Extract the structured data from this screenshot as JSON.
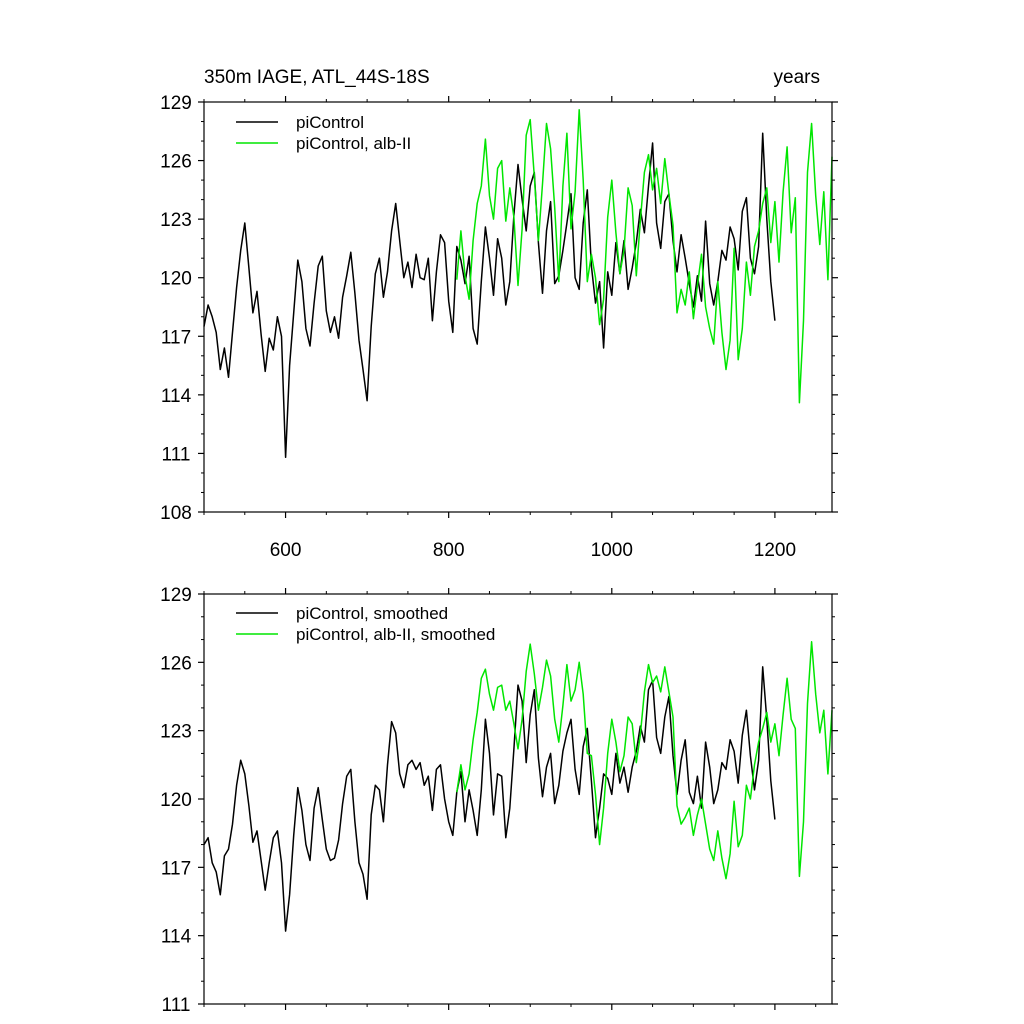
{
  "chart_data": [
    {
      "type": "line",
      "id": "top",
      "title_left": "350m IAGE, ATL_44S-18S",
      "title_right": "years",
      "xlabel": "",
      "ylabel": "",
      "xlim": [
        500,
        1270
      ],
      "ylim": [
        108,
        129
      ],
      "xticks": [
        600,
        800,
        1000,
        1200
      ],
      "xtick_labels": [
        "600",
        "800",
        "1000",
        "1200"
      ],
      "yticks": [
        108,
        111,
        114,
        117,
        120,
        123,
        126,
        129
      ],
      "ytick_labels": [
        "108",
        "111",
        "114",
        "117",
        "120",
        "123",
        "126",
        "129"
      ],
      "legend_position": "top-left",
      "series": [
        {
          "name": "piControl",
          "color": "#000000",
          "x": [
            500,
            505,
            510,
            515,
            520,
            525,
            530,
            535,
            540,
            545,
            550,
            555,
            560,
            565,
            570,
            575,
            580,
            585,
            590,
            595,
            600,
            605,
            610,
            615,
            620,
            625,
            630,
            635,
            640,
            645,
            650,
            655,
            660,
            665,
            670,
            675,
            680,
            685,
            690,
            695,
            700,
            705,
            710,
            715,
            720,
            725,
            730,
            735,
            740,
            745,
            750,
            755,
            760,
            765,
            770,
            775,
            780,
            785,
            790,
            795,
            800,
            805,
            810,
            815,
            820,
            825,
            830,
            835,
            840,
            845,
            850,
            855,
            860,
            865,
            870,
            875,
            880,
            885,
            890,
            895,
            900,
            905,
            910,
            915,
            920,
            925,
            930,
            935,
            940,
            945,
            950,
            955,
            960,
            965,
            970,
            975,
            980,
            985,
            990,
            995,
            1000,
            1005,
            1010,
            1015,
            1020,
            1025,
            1030,
            1035,
            1040,
            1045,
            1050,
            1055,
            1060,
            1065,
            1070,
            1075,
            1080,
            1085,
            1090,
            1095,
            1100,
            1105,
            1110,
            1115,
            1120,
            1125,
            1130,
            1135,
            1140,
            1145,
            1150,
            1155,
            1160,
            1165,
            1170,
            1175,
            1180,
            1185,
            1190,
            1195,
            1200
          ],
          "values": [
            117.5,
            118.6,
            118.0,
            117.2,
            115.3,
            116.4,
            114.9,
            117.2,
            119.5,
            121.4,
            122.8,
            120.5,
            118.2,
            119.3,
            117.1,
            115.2,
            116.9,
            116.3,
            118.0,
            117.0,
            110.8,
            115.5,
            118.2,
            120.9,
            119.8,
            117.4,
            116.5,
            118.7,
            120.6,
            121.1,
            118.3,
            117.2,
            118.0,
            116.9,
            119.0,
            120.1,
            121.3,
            119.2,
            116.8,
            115.3,
            113.7,
            117.5,
            120.2,
            121.0,
            119.0,
            120.3,
            122.4,
            123.8,
            121.9,
            120.0,
            120.8,
            119.5,
            121.2,
            120.0,
            119.9,
            121.0,
            117.8,
            120.3,
            122.2,
            121.8,
            118.8,
            117.2,
            121.6,
            120.9,
            119.7,
            121.1,
            117.4,
            116.6,
            119.8,
            122.6,
            121.0,
            119.1,
            122.0,
            121.0,
            118.6,
            119.8,
            123.2,
            125.8,
            124.0,
            122.4,
            124.7,
            125.4,
            121.8,
            119.2,
            122.4,
            123.9,
            119.7,
            120.1,
            121.4,
            122.8,
            124.3,
            120.0,
            119.4,
            122.8,
            124.5,
            120.6,
            118.7,
            119.8,
            116.4,
            120.3,
            119.1,
            121.8,
            120.2,
            121.9,
            119.4,
            120.5,
            121.8,
            123.5,
            122.3,
            124.7,
            126.9,
            122.8,
            121.5,
            123.9,
            124.3,
            121.9,
            120.3,
            122.2,
            121.0,
            119.7,
            118.5,
            120.1,
            118.8,
            122.9,
            119.7,
            118.6,
            119.8,
            121.4,
            120.9,
            122.6,
            122.0,
            120.4,
            123.4,
            124.1,
            121.0,
            120.2,
            121.6,
            127.4,
            123.0,
            119.8,
            117.8
          ]
        },
        {
          "name": "piControl, alb-II",
          "color": "#00e600",
          "x": [
            810,
            815,
            820,
            825,
            830,
            835,
            840,
            845,
            850,
            855,
            860,
            865,
            870,
            875,
            880,
            885,
            890,
            895,
            900,
            905,
            910,
            915,
            920,
            925,
            930,
            935,
            940,
            945,
            950,
            955,
            960,
            965,
            970,
            975,
            980,
            985,
            990,
            995,
            1000,
            1005,
            1010,
            1015,
            1020,
            1025,
            1030,
            1035,
            1040,
            1045,
            1050,
            1055,
            1060,
            1065,
            1070,
            1075,
            1080,
            1085,
            1090,
            1095,
            1100,
            1105,
            1110,
            1115,
            1120,
            1125,
            1130,
            1135,
            1140,
            1145,
            1150,
            1155,
            1160,
            1165,
            1170,
            1175,
            1180,
            1185,
            1190,
            1195,
            1200,
            1205,
            1210,
            1215,
            1220,
            1225,
            1230,
            1235,
            1240,
            1245,
            1250,
            1255,
            1260,
            1265,
            1270
          ],
          "values": [
            119.9,
            122.4,
            120.1,
            118.9,
            121.9,
            123.8,
            124.7,
            127.1,
            124.2,
            123.0,
            125.6,
            126.0,
            122.9,
            124.6,
            123.1,
            119.6,
            122.5,
            127.3,
            128.1,
            125.2,
            121.9,
            124.8,
            127.9,
            126.6,
            123.6,
            119.8,
            124.7,
            127.4,
            122.5,
            124.4,
            128.6,
            125.0,
            119.8,
            121.2,
            120.0,
            117.6,
            118.9,
            123.1,
            125.0,
            122.3,
            120.2,
            121.4,
            124.6,
            123.7,
            120.1,
            122.9,
            125.4,
            126.3,
            124.5,
            125.6,
            123.8,
            126.1,
            124.3,
            122.7,
            118.2,
            119.4,
            118.6,
            120.3,
            117.9,
            119.6,
            121.2,
            118.5,
            117.4,
            116.6,
            119.8,
            117.2,
            115.3,
            116.8,
            121.5,
            115.8,
            117.4,
            120.8,
            119.1,
            121.6,
            122.4,
            123.8,
            124.6,
            121.8,
            123.9,
            120.8,
            124.4,
            126.7,
            122.3,
            124.1,
            113.6,
            117.8,
            125.4,
            127.9,
            124.2,
            121.7,
            124.4,
            119.9,
            126.2
          ]
        }
      ]
    },
    {
      "type": "line",
      "id": "bottom",
      "title_left": "",
      "title_right": "",
      "xlabel": "",
      "ylabel": "",
      "xlim": [
        500,
        1270
      ],
      "ylim": [
        111,
        129
      ],
      "xticks": [
        600,
        800,
        1000,
        1200
      ],
      "xtick_labels": [],
      "yticks": [
        111,
        114,
        117,
        120,
        123,
        126,
        129
      ],
      "ytick_labels": [
        "111",
        "114",
        "117",
        "120",
        "123",
        "126",
        "129"
      ],
      "legend_position": "top-left",
      "series": [
        {
          "name": "piControl, smoothed",
          "color": "#000000",
          "x": [
            500,
            505,
            510,
            515,
            520,
            525,
            530,
            535,
            540,
            545,
            550,
            555,
            560,
            565,
            570,
            575,
            580,
            585,
            590,
            595,
            600,
            605,
            610,
            615,
            620,
            625,
            630,
            635,
            640,
            645,
            650,
            655,
            660,
            665,
            670,
            675,
            680,
            685,
            690,
            695,
            700,
            705,
            710,
            715,
            720,
            725,
            730,
            735,
            740,
            745,
            750,
            755,
            760,
            765,
            770,
            775,
            780,
            785,
            790,
            795,
            800,
            805,
            810,
            815,
            820,
            825,
            830,
            835,
            840,
            845,
            850,
            855,
            860,
            865,
            870,
            875,
            880,
            885,
            890,
            895,
            900,
            905,
            910,
            915,
            920,
            925,
            930,
            935,
            940,
            945,
            950,
            955,
            960,
            965,
            970,
            975,
            980,
            985,
            990,
            995,
            1000,
            1005,
            1010,
            1015,
            1020,
            1025,
            1030,
            1035,
            1040,
            1045,
            1050,
            1055,
            1060,
            1065,
            1070,
            1075,
            1080,
            1085,
            1090,
            1095,
            1100,
            1105,
            1110,
            1115,
            1120,
            1125,
            1130,
            1135,
            1140,
            1145,
            1150,
            1155,
            1160,
            1165,
            1170,
            1175,
            1180,
            1185,
            1190,
            1195,
            1200
          ],
          "values": [
            118.0,
            118.3,
            117.2,
            116.8,
            115.8,
            117.5,
            117.8,
            118.9,
            120.6,
            121.7,
            121.1,
            119.7,
            118.1,
            118.6,
            117.3,
            116.0,
            117.2,
            118.3,
            118.6,
            117.2,
            114.2,
            115.8,
            118.4,
            120.5,
            119.5,
            118.0,
            117.3,
            119.6,
            120.5,
            119.1,
            117.8,
            117.3,
            117.4,
            118.2,
            119.8,
            121.0,
            121.3,
            119.0,
            117.2,
            116.7,
            115.6,
            119.3,
            120.6,
            120.4,
            119.0,
            121.5,
            123.4,
            122.9,
            121.1,
            120.5,
            121.5,
            121.7,
            121.3,
            121.6,
            120.6,
            121.0,
            119.5,
            121.3,
            121.5,
            120.0,
            119.0,
            118.4,
            120.3,
            121.2,
            119.0,
            120.4,
            119.5,
            118.4,
            120.4,
            123.5,
            122.0,
            119.3,
            121.1,
            121.0,
            118.3,
            119.6,
            122.2,
            125.0,
            124.3,
            121.6,
            123.7,
            124.8,
            121.8,
            120.1,
            121.4,
            122.0,
            119.8,
            120.6,
            122.1,
            122.9,
            123.5,
            121.3,
            120.2,
            122.3,
            123.1,
            120.8,
            118.3,
            119.6,
            121.1,
            120.9,
            120.2,
            122.0,
            120.7,
            121.4,
            120.3,
            121.4,
            122.1,
            123.2,
            122.5,
            124.8,
            125.2,
            122.7,
            122.0,
            123.6,
            124.5,
            121.9,
            120.2,
            121.7,
            122.6,
            120.3,
            119.8,
            121.0,
            119.6,
            122.5,
            121.4,
            119.8,
            120.4,
            121.6,
            121.3,
            122.6,
            122.1,
            120.7,
            122.8,
            123.9,
            121.9,
            120.4,
            121.7,
            125.8,
            123.5,
            120.8,
            119.1
          ]
        },
        {
          "name": "piControl, alb-II, smoothed",
          "color": "#00e600",
          "x": [
            810,
            815,
            820,
            825,
            830,
            835,
            840,
            845,
            850,
            855,
            860,
            865,
            870,
            875,
            880,
            885,
            890,
            895,
            900,
            905,
            910,
            915,
            920,
            925,
            930,
            935,
            940,
            945,
            950,
            955,
            960,
            965,
            970,
            975,
            980,
            985,
            990,
            995,
            1000,
            1005,
            1010,
            1015,
            1020,
            1025,
            1030,
            1035,
            1040,
            1045,
            1050,
            1055,
            1060,
            1065,
            1070,
            1075,
            1080,
            1085,
            1090,
            1095,
            1100,
            1105,
            1110,
            1115,
            1120,
            1125,
            1130,
            1135,
            1140,
            1145,
            1150,
            1155,
            1160,
            1165,
            1170,
            1175,
            1180,
            1185,
            1190,
            1195,
            1200,
            1205,
            1210,
            1215,
            1220,
            1225,
            1230,
            1235,
            1240,
            1245,
            1250,
            1255,
            1260,
            1265,
            1270
          ],
          "values": [
            120.3,
            121.5,
            120.4,
            121.1,
            122.6,
            123.8,
            125.3,
            125.7,
            124.6,
            123.9,
            124.9,
            125.0,
            123.9,
            124.3,
            123.3,
            122.2,
            123.5,
            125.6,
            126.8,
            125.5,
            123.9,
            124.9,
            126.1,
            125.4,
            123.5,
            122.5,
            124.1,
            125.9,
            124.3,
            124.8,
            126.0,
            124.6,
            122.0,
            121.9,
            120.2,
            118.0,
            119.6,
            122.0,
            123.5,
            122.5,
            121.2,
            121.9,
            123.6,
            123.3,
            121.6,
            122.8,
            124.7,
            125.9,
            125.1,
            125.4,
            124.7,
            125.8,
            124.7,
            123.6,
            119.7,
            118.9,
            119.2,
            119.6,
            118.4,
            119.3,
            120.0,
            118.9,
            117.8,
            117.3,
            118.6,
            117.4,
            116.5,
            117.6,
            119.9,
            117.9,
            118.4,
            120.6,
            120.0,
            121.5,
            122.5,
            123.1,
            123.8,
            122.5,
            123.3,
            121.9,
            123.7,
            125.3,
            123.5,
            123.1,
            116.6,
            119.0,
            124.2,
            126.9,
            124.6,
            122.9,
            123.9,
            121.1,
            123.9
          ]
        }
      ]
    }
  ]
}
